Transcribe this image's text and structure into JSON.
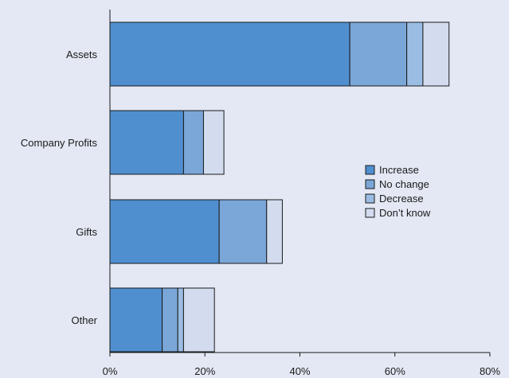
{
  "chart_data": {
    "type": "bar",
    "orientation": "horizontal",
    "stacked": true,
    "categories": [
      "Assets",
      "Company Profits",
      "Gifts",
      "Other"
    ],
    "series": [
      {
        "name": "Increase",
        "color": "#4f8fcf",
        "values": [
          50.5,
          15.5,
          23.0,
          11.0
        ]
      },
      {
        "name": "No change",
        "color": "#7aa6d8",
        "values": [
          12.0,
          4.2,
          10.0,
          3.3
        ]
      },
      {
        "name": "Decrease",
        "color": "#9bbde3",
        "values": [
          3.4,
          0.0,
          0.0,
          1.2
        ]
      },
      {
        "name": "Don’t know",
        "color": "#d2dcee",
        "values": [
          5.5,
          4.3,
          3.3,
          6.5
        ]
      }
    ],
    "xlim": [
      0,
      80
    ],
    "xticks": [
      0,
      20,
      40,
      60,
      80
    ],
    "xtick_labels": [
      "0%",
      "20%",
      "40%",
      "60%",
      "80%"
    ],
    "grid": false,
    "legend_position": "right-center"
  }
}
